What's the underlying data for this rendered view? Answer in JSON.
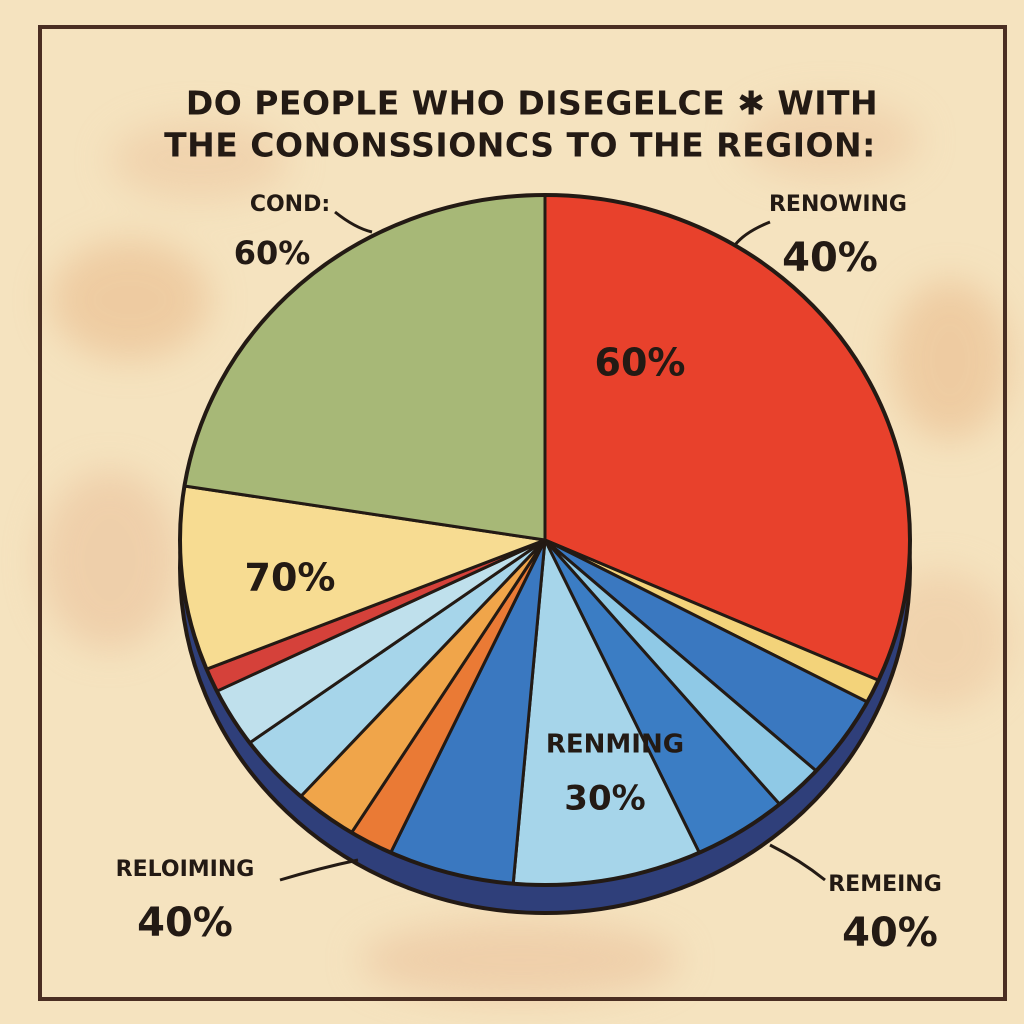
{
  "title": [
    "DO PEOPLE WHO DISEGELCE ✱ WITH",
    "THE CONONSSIONCS TO THE REGION:"
  ],
  "callouts": [
    {
      "name": "COND:",
      "value": "60%"
    },
    {
      "name": "RENOWING",
      "value": "40%"
    },
    {
      "name": "RELOIMING",
      "value": "40%"
    },
    {
      "name": "REMEING",
      "value": "40%"
    }
  ],
  "slice_labels": [
    {
      "value": "60%"
    },
    {
      "value": "70%"
    },
    {
      "name": "RENMING",
      "value": "30%"
    }
  ]
}
